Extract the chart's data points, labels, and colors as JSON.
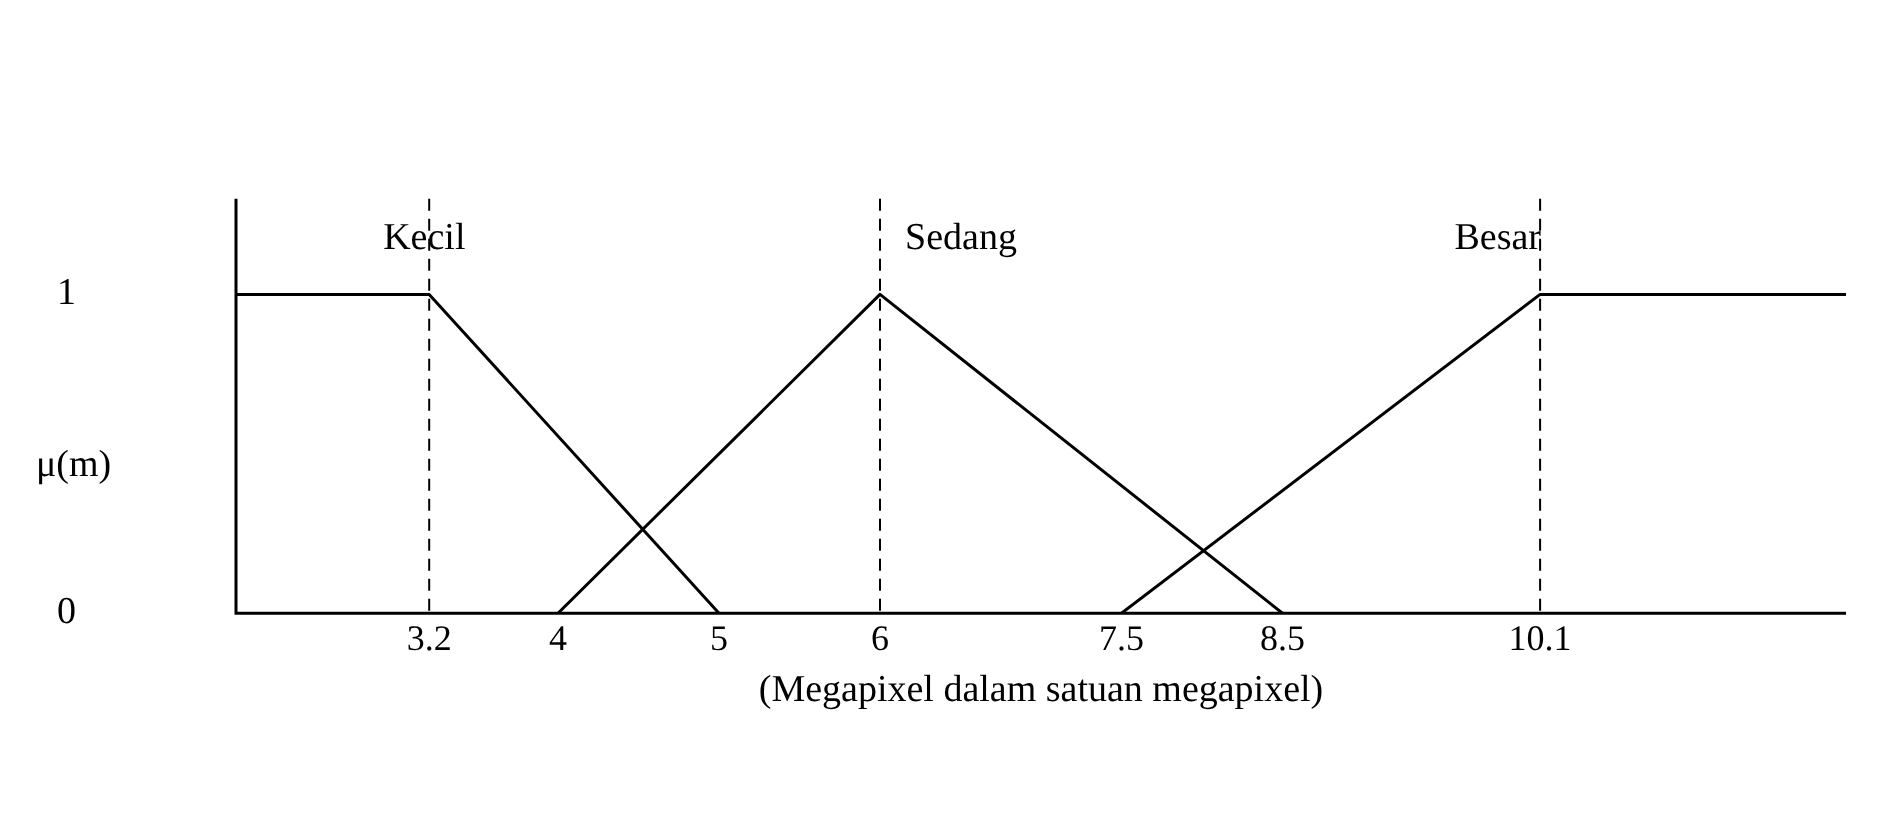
{
  "chart_data": {
    "type": "line",
    "xlabel": "(Megapixel dalam satuan megapixel)",
    "ylabel": "μ(m)",
    "series": [
      {
        "name": "Kecil",
        "color": "#000000",
        "x": [
          2,
          3.2,
          5
        ],
        "values": [
          1,
          1,
          0
        ]
      },
      {
        "name": "Sedang",
        "color": "#000000",
        "x": [
          4,
          6,
          8.5
        ],
        "values": [
          0,
          1,
          0
        ]
      },
      {
        "name": "Besar",
        "color": "#000000",
        "x": [
          7.5,
          10.1,
          12
        ],
        "values": [
          0,
          1,
          1
        ]
      }
    ],
    "xlim": [
      2,
      12
    ],
    "xticks": [
      3.2,
      4,
      5,
      6,
      7.5,
      8.5,
      10.1
    ],
    "ylim": [
      0,
      1.3
    ],
    "yticks": [
      0,
      1
    ],
    "ref_lines": [
      {
        "axis": "x",
        "value": 3.2,
        "color": "#000000",
        "line_style": "dashed"
      },
      {
        "axis": "x",
        "value": 6,
        "color": "#000000",
        "line_style": "dashed"
      },
      {
        "axis": "x",
        "value": 10.1,
        "color": "#000000",
        "line_style": "dashed"
      }
    ],
    "grid": false,
    "legend": false,
    "marker": "none",
    "line_style": "solid"
  }
}
